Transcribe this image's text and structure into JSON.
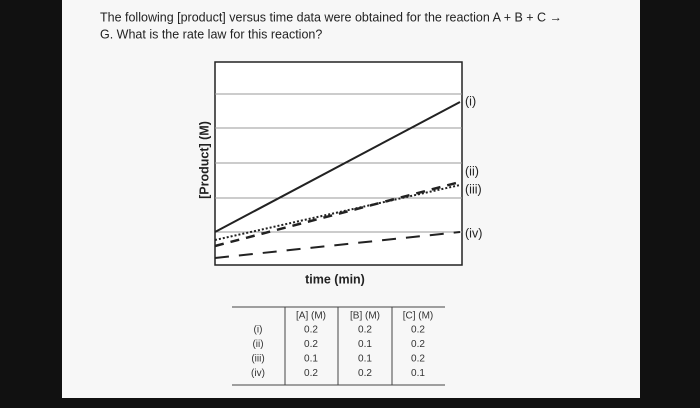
{
  "question": {
    "line1": "The following [product] versus time data were obtained for the reaction A + B + C →",
    "line2": "G. What is the rate law for this reaction?"
  },
  "graph": {
    "y_label": "[Product] (M)",
    "x_label": "time (min)",
    "line_labels": [
      "(i)",
      "(ii)",
      "(iii)",
      "(iv)"
    ]
  },
  "table": {
    "header": [
      "[A] (M)",
      "[B] (M)",
      "[C] (M)"
    ],
    "rows": [
      [
        "(i)",
        "0.2",
        "0.2",
        "0.2"
      ],
      [
        "(ii)",
        "0.2",
        "0.1",
        "0.2"
      ],
      [
        "(iii)",
        "0.1",
        "0.1",
        "0.2"
      ],
      [
        "(iv)",
        "0.2",
        "0.2",
        "0.1"
      ]
    ]
  }
}
